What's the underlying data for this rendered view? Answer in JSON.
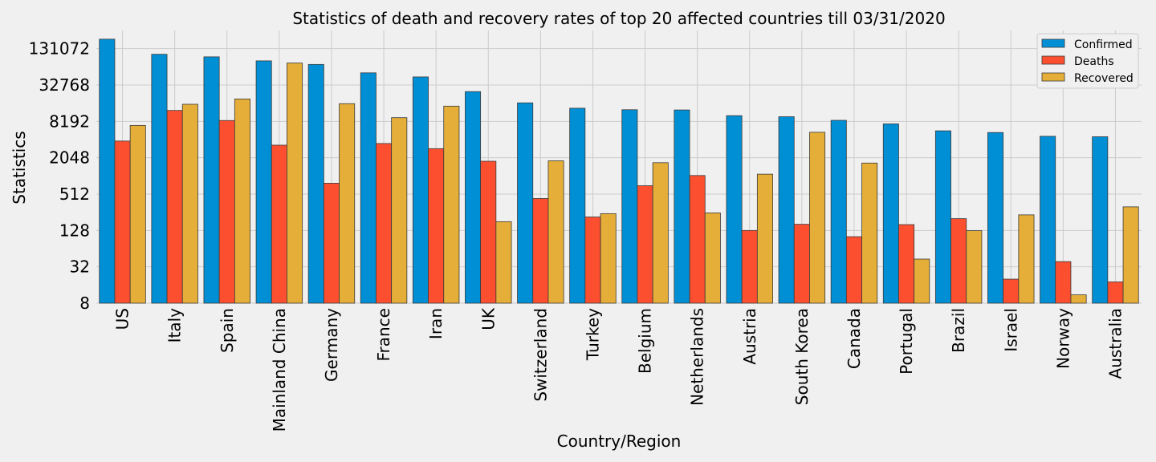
{
  "chart_data": {
    "type": "bar",
    "title": "Statistics of death and recovery rates of top 20 affected countries till 03/31/2020",
    "xlabel": "Country/Region",
    "ylabel": "Statistics",
    "y_scale": "log2",
    "ylim": [
      8,
      262144
    ],
    "yticks": [
      8,
      32,
      128,
      512,
      2048,
      8192,
      32768,
      131072
    ],
    "ytick_labels": [
      "8",
      "32",
      "128",
      "512",
      "2048",
      "8192",
      "32768",
      "131072"
    ],
    "grid": true,
    "legend_position": "top-right",
    "categories": [
      "US",
      "Italy",
      "Spain",
      "Mainland China",
      "Germany",
      "France",
      "Iran",
      "UK",
      "Switzerland",
      "Turkey",
      "Belgium",
      "Netherlands",
      "Austria",
      "South Korea",
      "Canada",
      "Portugal",
      "Brazil",
      "Israel",
      "Norway",
      "Australia"
    ],
    "series": [
      {
        "name": "Confirmed",
        "color": "#008fd5",
        "values": [
          188172,
          105792,
          95923,
          82279,
          71808,
          52128,
          44605,
          25481,
          16605,
          13531,
          12775,
          12667,
          10180,
          9786,
          8527,
          7443,
          5717,
          5358,
          4641,
          4559
        ]
      },
      {
        "name": "Deaths",
        "color": "#fc4f30",
        "values": [
          3873,
          12428,
          8464,
          3309,
          775,
          3523,
          2898,
          1793,
          433,
          214,
          705,
          1040,
          128,
          162,
          101,
          160,
          201,
          20,
          39,
          18
        ]
      },
      {
        "name": "Recovered",
        "color": "#e5ae38",
        "values": [
          7024,
          15729,
          19259,
          75848,
          16100,
          9444,
          14656,
          179,
          1823,
          243,
          1696,
          250,
          1095,
          5408,
          1673,
          43,
          127,
          232,
          11,
          315
        ]
      }
    ]
  }
}
